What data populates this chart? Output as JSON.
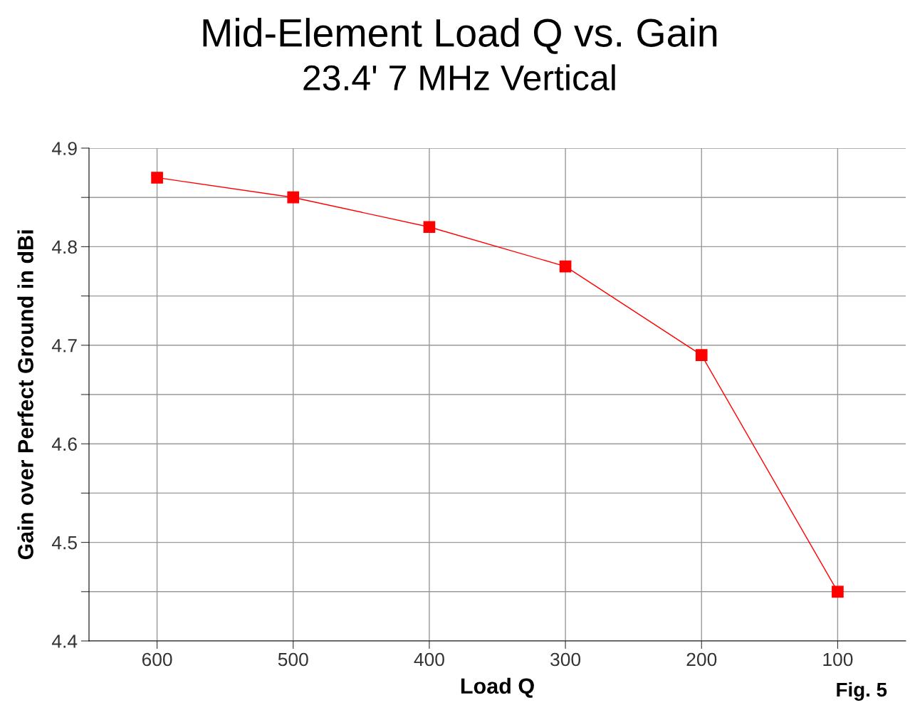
{
  "chart_data": {
    "type": "line",
    "title": "Mid-Element Load Q vs. Gain",
    "subtitle": "23.4' 7 MHz Vertical",
    "xlabel": "Load Q",
    "ylabel": "Gain over Perfect Ground in dBi",
    "x": [
      600,
      500,
      400,
      300,
      200,
      100
    ],
    "series": [
      {
        "color": "#ff0000",
        "values": [
          4.87,
          4.85,
          4.82,
          4.78,
          4.69,
          4.45
        ]
      }
    ],
    "xlim": [
      650,
      50
    ],
    "xticks": [
      600,
      500,
      400,
      300,
      200,
      100
    ],
    "ylim": [
      4.4,
      4.9
    ],
    "yticks": [
      4.4,
      {
        "value": 4.45,
        "label": null
      },
      4.5,
      {
        "value": 4.55,
        "label": null
      },
      4.6,
      {
        "value": 4.65,
        "label": null
      },
      4.7,
      {
        "value": 4.75,
        "label": null
      },
      4.8,
      {
        "value": 4.85,
        "label": null
      },
      4.9
    ],
    "grid": true,
    "marker": "square",
    "line_style": "solid",
    "legend": false,
    "annotations": [
      "Fig. 5"
    ]
  }
}
